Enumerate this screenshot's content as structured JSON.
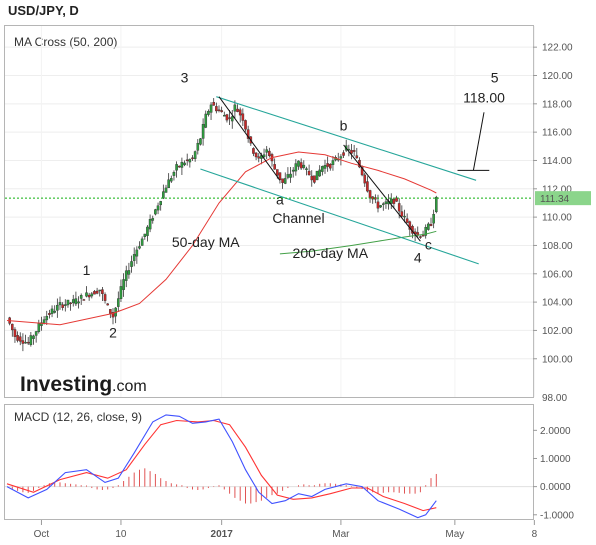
{
  "header": {
    "symbol": "USD/JPY, D",
    "indicator_title": "MA Cross (50, 200)",
    "macd_title": "MACD (12, 26, close, 9)",
    "brand": "Investing",
    "brand_suffix": ".com"
  },
  "colors": {
    "bull": "#2e9c3e",
    "bear": "#c62828",
    "ma50": "#e53935",
    "ma200": "#43a047",
    "channel": "#26a69a",
    "price_line": "#0fb00f",
    "price_tag": "#8bd58b",
    "macd_line": "#3f51ff",
    "signal_line": "#ff3333",
    "hist": "#e05555"
  },
  "chart_data": [
    {
      "type": "candlestick",
      "title": "USD/JPY, D",
      "x_ticks": [
        "Oct",
        "10",
        "2017",
        "Mar",
        "May",
        "8"
      ],
      "y_ticks": [
        "100.00",
        "102.00",
        "104.00",
        "106.00",
        "108.00",
        "110.00",
        "112.00",
        "114.00",
        "116.00",
        "118.00",
        "120.00",
        "122.00"
      ],
      "y_last_tick": "98.00",
      "ylim": [
        97.3,
        123
      ],
      "current_price": "111.34",
      "price_anchors": [
        [
          0,
          102.9
        ],
        [
          3,
          101.6
        ],
        [
          8,
          101.1
        ],
        [
          14,
          102.9
        ],
        [
          20,
          103.8
        ],
        [
          25,
          104.0
        ],
        [
          30,
          104.5
        ],
        [
          35,
          104.9
        ],
        [
          38,
          103.6
        ],
        [
          40,
          103.0
        ],
        [
          44,
          105.5
        ],
        [
          48,
          107.4
        ],
        [
          52,
          108.8
        ],
        [
          56,
          110.5
        ],
        [
          60,
          112.2
        ],
        [
          64,
          113.5
        ],
        [
          67,
          113.9
        ],
        [
          70,
          114.1
        ],
        [
          73,
          115.6
        ],
        [
          75,
          117.1
        ],
        [
          77,
          118.0
        ],
        [
          80,
          117.5
        ],
        [
          84,
          116.9
        ],
        [
          86,
          117.8
        ],
        [
          89,
          117.0
        ],
        [
          92,
          115.0
        ],
        [
          95,
          114.0
        ],
        [
          98,
          114.8
        ],
        [
          101,
          113.4
        ],
        [
          104,
          112.4
        ],
        [
          107,
          113.1
        ],
        [
          110,
          113.9
        ],
        [
          113,
          113.2
        ],
        [
          116,
          112.7
        ],
        [
          119,
          113.6
        ],
        [
          122,
          113.7
        ],
        [
          125,
          114.2
        ],
        [
          128,
          114.8
        ],
        [
          131,
          114.5
        ],
        [
          134,
          113.1
        ],
        [
          137,
          111.5
        ],
        [
          140,
          110.8
        ],
        [
          143,
          110.9
        ],
        [
          146,
          111.2
        ],
        [
          149,
          110.2
        ],
        [
          152,
          109.3
        ],
        [
          155,
          108.7
        ],
        [
          157,
          108.8
        ],
        [
          160,
          109.6
        ],
        [
          162,
          111.2
        ]
      ],
      "series": [
        {
          "name": "50-day MA",
          "points": [
            [
              0,
              102.7
            ],
            [
              20,
              102.4
            ],
            [
              40,
              103.2
            ],
            [
              50,
              103.9
            ],
            [
              60,
              105.6
            ],
            [
              70,
              108.0
            ],
            [
              80,
              111.0
            ],
            [
              90,
              113.2
            ],
            [
              100,
              114.2
            ],
            [
              110,
              114.6
            ],
            [
              120,
              114.4
            ],
            [
              130,
              113.8
            ],
            [
              140,
              113.3
            ],
            [
              150,
              112.7
            ],
            [
              160,
              111.9
            ],
            [
              162,
              111.7
            ]
          ]
        },
        {
          "name": "200-day MA",
          "points": [
            [
              103,
              107.4
            ],
            [
              115,
              107.6
            ],
            [
              130,
              108.0
            ],
            [
              140,
              108.3
            ],
            [
              150,
              108.6
            ],
            [
              158,
              108.8
            ],
            [
              162,
              109.0
            ]
          ]
        }
      ],
      "channel": {
        "name": "Channel",
        "upper": [
          [
            79,
            118.5
          ],
          [
            177,
            112.6
          ]
        ],
        "lower": [
          [
            73,
            113.4
          ],
          [
            178,
            106.7
          ]
        ]
      },
      "trendlines": [
        [
          [
            80,
            118.5
          ],
          [
            103,
            112.6
          ]
        ],
        [
          [
            127,
            115.1
          ],
          [
            156,
            108.3
          ]
        ]
      ],
      "target": {
        "label": "118.00",
        "level": 113.3,
        "x_range": [
          170,
          182
        ],
        "pointer": [
          [
            176,
            113.3
          ],
          [
            180,
            117.4
          ]
        ]
      },
      "annotations": [
        {
          "text": "1",
          "x": 30,
          "y": 105.9
        },
        {
          "text": "2",
          "x": 40,
          "y": 101.5
        },
        {
          "text": "3",
          "x": 67,
          "y": 119.5
        },
        {
          "text": "a",
          "x": 103,
          "y": 110.9
        },
        {
          "text": "Channel",
          "x": 110,
          "y": 109.6
        },
        {
          "text": "b",
          "x": 127,
          "y": 116.1
        },
        {
          "text": "50-day MA",
          "x": 75,
          "y": 107.9
        },
        {
          "text": "200-day MA",
          "x": 122,
          "y": 107.1
        },
        {
          "text": "4",
          "x": 155,
          "y": 106.8
        },
        {
          "text": "c",
          "x": 159,
          "y": 107.7
        },
        {
          "text": "5",
          "x": 184,
          "y": 119.5
        }
      ]
    },
    {
      "type": "line",
      "title": "MACD (12, 26, close, 9)",
      "y_ticks": [
        "-1.0000",
        "0.0000",
        "1.0000",
        "2.0000"
      ],
      "ylim": [
        -1.15,
        2.9
      ],
      "series": [
        {
          "name": "MACD",
          "points": [
            [
              0,
              0.0
            ],
            [
              8,
              -0.4
            ],
            [
              15,
              -0.1
            ],
            [
              22,
              0.5
            ],
            [
              30,
              0.6
            ],
            [
              37,
              0.15
            ],
            [
              42,
              0.3
            ],
            [
              48,
              1.2
            ],
            [
              55,
              2.3
            ],
            [
              60,
              2.55
            ],
            [
              65,
              2.5
            ],
            [
              70,
              2.25
            ],
            [
              75,
              2.3
            ],
            [
              80,
              2.4
            ],
            [
              85,
              1.6
            ],
            [
              90,
              0.6
            ],
            [
              95,
              -0.2
            ],
            [
              100,
              -0.6
            ],
            [
              105,
              -0.5
            ],
            [
              110,
              -0.25
            ],
            [
              115,
              -0.35
            ],
            [
              120,
              -0.1
            ],
            [
              128,
              0.1
            ],
            [
              134,
              0.0
            ],
            [
              140,
              -0.5
            ],
            [
              148,
              -0.8
            ],
            [
              155,
              -1.1
            ],
            [
              158,
              -1.0
            ],
            [
              162,
              -0.5
            ]
          ]
        },
        {
          "name": "Signal",
          "points": [
            [
              0,
              0.1
            ],
            [
              10,
              -0.2
            ],
            [
              20,
              0.25
            ],
            [
              30,
              0.5
            ],
            [
              38,
              0.3
            ],
            [
              45,
              0.6
            ],
            [
              52,
              1.5
            ],
            [
              58,
              2.2
            ],
            [
              64,
              2.35
            ],
            [
              72,
              2.3
            ],
            [
              78,
              2.35
            ],
            [
              84,
              2.2
            ],
            [
              90,
              1.4
            ],
            [
              96,
              0.4
            ],
            [
              102,
              -0.3
            ],
            [
              108,
              -0.45
            ],
            [
              115,
              -0.4
            ],
            [
              122,
              -0.25
            ],
            [
              130,
              -0.05
            ],
            [
              136,
              -0.05
            ],
            [
              142,
              -0.35
            ],
            [
              150,
              -0.6
            ],
            [
              157,
              -0.85
            ],
            [
              162,
              -0.75
            ]
          ]
        }
      ],
      "histogram": [
        [
          2,
          -0.1
        ],
        [
          4,
          -0.15
        ],
        [
          6,
          -0.2
        ],
        [
          8,
          -0.22
        ],
        [
          10,
          -0.15
        ],
        [
          12,
          -0.05
        ],
        [
          14,
          0.05
        ],
        [
          16,
          0.12
        ],
        [
          18,
          0.15
        ],
        [
          20,
          0.15
        ],
        [
          22,
          0.12
        ],
        [
          24,
          0.1
        ],
        [
          26,
          0.08
        ],
        [
          28,
          0.05
        ],
        [
          30,
          0.04
        ],
        [
          32,
          -0.05
        ],
        [
          34,
          -0.1
        ],
        [
          36,
          -0.12
        ],
        [
          38,
          -0.1
        ],
        [
          40,
          -0.05
        ],
        [
          42,
          0.05
        ],
        [
          44,
          0.2
        ],
        [
          46,
          0.35
        ],
        [
          48,
          0.5
        ],
        [
          50,
          0.6
        ],
        [
          52,
          0.65
        ],
        [
          54,
          0.55
        ],
        [
          56,
          0.45
        ],
        [
          58,
          0.3
        ],
        [
          60,
          0.2
        ],
        [
          62,
          0.12
        ],
        [
          64,
          0.08
        ],
        [
          66,
          0.05
        ],
        [
          68,
          -0.05
        ],
        [
          70,
          -0.1
        ],
        [
          72,
          -0.12
        ],
        [
          74,
          -0.1
        ],
        [
          76,
          -0.05
        ],
        [
          78,
          0.02
        ],
        [
          80,
          0.05
        ],
        [
          82,
          -0.1
        ],
        [
          84,
          -0.25
        ],
        [
          86,
          -0.4
        ],
        [
          88,
          -0.5
        ],
        [
          90,
          -0.6
        ],
        [
          92,
          -0.6
        ],
        [
          94,
          -0.55
        ],
        [
          96,
          -0.5
        ],
        [
          98,
          -0.4
        ],
        [
          100,
          -0.3
        ],
        [
          102,
          -0.25
        ],
        [
          104,
          -0.15
        ],
        [
          106,
          -0.05
        ],
        [
          108,
          0.0
        ],
        [
          110,
          0.05
        ],
        [
          112,
          0.08
        ],
        [
          114,
          0.05
        ],
        [
          116,
          0.05
        ],
        [
          118,
          0.1
        ],
        [
          120,
          0.12
        ],
        [
          122,
          0.12
        ],
        [
          124,
          0.1
        ],
        [
          126,
          0.08
        ],
        [
          128,
          0.05
        ],
        [
          130,
          0.02
        ],
        [
          132,
          -0.03
        ],
        [
          134,
          -0.08
        ],
        [
          136,
          -0.15
        ],
        [
          138,
          -0.2
        ],
        [
          140,
          -0.25
        ],
        [
          142,
          -0.22
        ],
        [
          144,
          -0.2
        ],
        [
          146,
          -0.2
        ],
        [
          148,
          -0.22
        ],
        [
          150,
          -0.25
        ],
        [
          152,
          -0.25
        ],
        [
          154,
          -0.25
        ],
        [
          156,
          -0.2
        ],
        [
          158,
          0.05
        ],
        [
          160,
          0.3
        ],
        [
          162,
          0.45
        ]
      ]
    }
  ]
}
